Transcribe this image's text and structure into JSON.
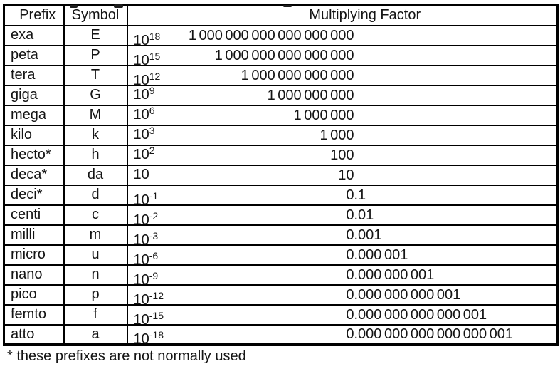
{
  "header": {
    "prefix": "Prefix",
    "symbol": "Symbol",
    "factor": "Multiplying Factor"
  },
  "rows": [
    {
      "prefix": "exa",
      "symbol": "E",
      "base": "10",
      "exp": "18",
      "int_part": "1 000 000 000 000 000 000",
      "frac_part": "",
      "pow_align": "low"
    },
    {
      "prefix": "peta",
      "symbol": "P",
      "base": "10",
      "exp": "15",
      "int_part": "1 000 000 000 000 000",
      "frac_part": "",
      "pow_align": "low"
    },
    {
      "prefix": "tera",
      "symbol": "T",
      "base": "10",
      "exp": "12",
      "int_part": "1 000 000 000 000",
      "frac_part": "",
      "pow_align": "low"
    },
    {
      "prefix": "giga",
      "symbol": "G",
      "base": "10",
      "exp": "9",
      "int_part": "1 000 000 000",
      "frac_part": "",
      "pow_align": "top"
    },
    {
      "prefix": "mega",
      "symbol": "M",
      "base": "10",
      "exp": "6",
      "int_part": "1 000 000",
      "frac_part": "",
      "pow_align": "top"
    },
    {
      "prefix": "kilo",
      "symbol": "k",
      "base": "10",
      "exp": "3",
      "int_part": "1 000",
      "frac_part": "",
      "pow_align": "top"
    },
    {
      "prefix": "hecto*",
      "symbol": "h",
      "base": "10",
      "exp": "2",
      "int_part": "100",
      "frac_part": "",
      "pow_align": "top"
    },
    {
      "prefix": "deca*",
      "symbol": "da",
      "base": "10",
      "exp": "",
      "int_part": "10",
      "frac_part": "",
      "pow_align": "top"
    },
    {
      "prefix": "deci*",
      "symbol": "d",
      "base": "10",
      "exp": "-1",
      "int_part": "0",
      "frac_part": ".1",
      "pow_align": "low"
    },
    {
      "prefix": "centi",
      "symbol": "c",
      "base": "10",
      "exp": "-2",
      "int_part": "0",
      "frac_part": ".01",
      "pow_align": "low"
    },
    {
      "prefix": "milli",
      "symbol": "m",
      "base": "10",
      "exp": "-3",
      "int_part": "0",
      "frac_part": ".001",
      "pow_align": "low"
    },
    {
      "prefix": "micro",
      "symbol": "u",
      "base": "10",
      "exp": "-6",
      "int_part": "0",
      "frac_part": ".000 001",
      "pow_align": "low"
    },
    {
      "prefix": "nano",
      "symbol": "n",
      "base": "10",
      "exp": "-9",
      "int_part": "0",
      "frac_part": ".000 000 001",
      "pow_align": "low"
    },
    {
      "prefix": "pico",
      "symbol": "p",
      "base": "10",
      "exp": "-12",
      "int_part": "0",
      "frac_part": ".000 000 000 001",
      "pow_align": "low"
    },
    {
      "prefix": "femto",
      "symbol": "f",
      "base": "10",
      "exp": "-15",
      "int_part": "0",
      "frac_part": ".000 000 000 000 001",
      "pow_align": "low"
    },
    {
      "prefix": "atto",
      "symbol": "a",
      "base": "10",
      "exp": "-18",
      "int_part": "0",
      "frac_part": ".000 000 000 000 000 001",
      "pow_align": "low"
    }
  ],
  "footnote": "* these prefixes are not normally used",
  "colors": {
    "border": "#000000",
    "text": "#141414",
    "background": "#ffffff"
  }
}
